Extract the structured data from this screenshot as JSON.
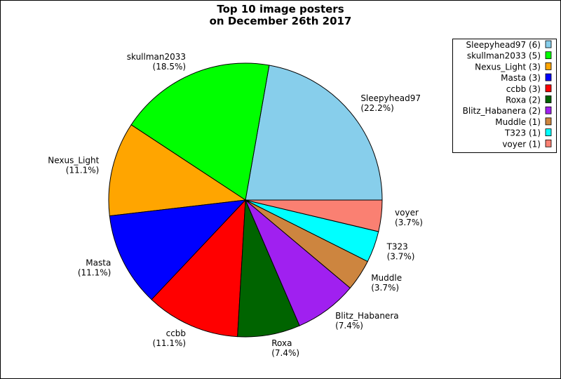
{
  "chart_data": {
    "type": "pie",
    "title": [
      "Top 10 image posters",
      "on December 26th 2017"
    ],
    "categories": [
      "Sleepyhead97",
      "skullman2033",
      "Nexus_Light",
      "Masta",
      "ccbb",
      "Roxa",
      "Blitz_Habanera",
      "Muddle",
      "T323",
      "voyer"
    ],
    "values": [
      22.2,
      18.5,
      11.1,
      11.1,
      11.1,
      7.4,
      7.4,
      3.7,
      3.7,
      3.7
    ],
    "value_labels": [
      "(22.2%)",
      "(18.5%)",
      "(11.1%)",
      "(11.1%)",
      "(11.1%)",
      "(7.4%)",
      "(7.4%)",
      "(3.7%)",
      "(3.7%)",
      "(3.7%)"
    ],
    "colors": [
      "#87ceeb",
      "#00ff00",
      "#ffa500",
      "#0000ff",
      "#ff0000",
      "#006400",
      "#a020f0",
      "#cd853f",
      "#00ffff",
      "#fa8072"
    ],
    "legend_labels": [
      "Sleepyhead97 (6)",
      "skullman2033 (5)",
      "Nexus_Light (3)",
      "Masta (3)",
      "ccbb (3)",
      "Roxa (2)",
      "Blitz_Habanera (2)",
      "Muddle (1)",
      "T323 (1)",
      "voyer (1)"
    ],
    "legend": "upper right"
  }
}
